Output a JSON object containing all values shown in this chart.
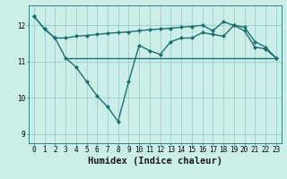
{
  "xlabel": "Humidex (Indice chaleur)",
  "bg_color": "#cceee8",
  "grid_color": "#99cccc",
  "line_color": "#1a7070",
  "xlim": [
    -0.5,
    23.5
  ],
  "ylim": [
    8.75,
    12.55
  ],
  "yticks": [
    9,
    10,
    11,
    12
  ],
  "xticks": [
    0,
    1,
    2,
    3,
    4,
    5,
    6,
    7,
    8,
    9,
    10,
    11,
    12,
    13,
    14,
    15,
    16,
    17,
    18,
    19,
    20,
    21,
    22,
    23
  ],
  "series1_x": [
    0,
    1,
    2,
    3,
    4,
    5,
    6,
    7,
    8,
    9,
    10,
    11,
    12,
    13,
    14,
    15,
    16,
    17,
    18,
    19,
    20,
    21,
    22,
    23
  ],
  "series1_y": [
    12.25,
    11.9,
    11.65,
    11.1,
    10.85,
    10.45,
    10.05,
    9.75,
    9.35,
    10.45,
    11.45,
    11.3,
    11.2,
    11.55,
    11.65,
    11.65,
    11.8,
    11.75,
    11.7,
    12.0,
    11.85,
    11.4,
    11.35,
    11.1
  ],
  "series2_x": [
    0,
    1,
    2,
    3,
    4,
    5,
    6,
    7,
    8,
    9,
    10,
    11,
    12,
    13,
    14,
    15,
    16,
    17,
    18,
    19,
    20,
    21,
    22,
    23
  ],
  "series2_y": [
    12.25,
    11.9,
    11.65,
    11.65,
    11.7,
    11.72,
    11.75,
    11.78,
    11.8,
    11.82,
    11.85,
    11.88,
    11.9,
    11.92,
    11.95,
    11.97,
    12.0,
    11.85,
    12.1,
    12.0,
    11.95,
    11.55,
    11.4,
    11.1
  ],
  "series3_x": [
    3,
    23
  ],
  "series3_y": [
    11.1,
    11.1
  ],
  "marker_size": 2.2,
  "linewidth": 1.0,
  "tick_fontsize": 5.5,
  "xlabel_fontsize": 7.5
}
